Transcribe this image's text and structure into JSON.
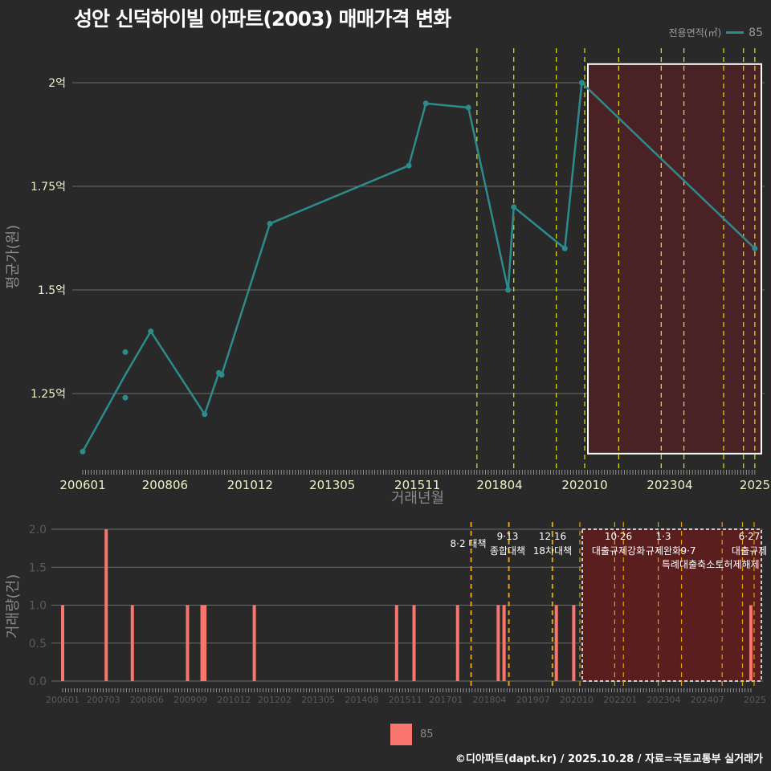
{
  "title": "성안 신덕하이빌 아파트(2003) 매매가격 변화",
  "legend_top": {
    "title": "전용면적(㎡)",
    "series": "85",
    "color": "#2e8b8b"
  },
  "legend_bottom": {
    "series": "85",
    "color": "#f8766d"
  },
  "footer": "©디아파트(dapt.kr) / 2025.10.28 / 자료=국토교통부 실거래가",
  "colors": {
    "background": "#2a292a",
    "line": "#2e8b8b",
    "bar": "#f8766d",
    "policy_line": "#e6e600",
    "policy_line_lower": "#e6a000",
    "highlight_fill": "#5a1e1e",
    "grid": "#6a6a6a"
  },
  "chart_data": [
    {
      "type": "line",
      "title": "성안 신덕하이빌 아파트(2003) 매매가격 변화",
      "xlabel": "거래년월",
      "ylabel": "평균가(원)",
      "x_tick_labels": [
        "200601",
        "200806",
        "201012",
        "201305",
        "201511",
        "201804",
        "202010",
        "202304",
        "2025"
      ],
      "y_tick_labels": [
        "1.25억",
        "1.5억",
        "1.75억",
        "2억"
      ],
      "ylim": [
        1.1,
        2.05
      ],
      "series": [
        {
          "name": "85",
          "points": [
            {
              "x": "200601",
              "y": 1.11
            },
            {
              "x": "200704",
              "y": 1.35
            },
            {
              "x": "200704",
              "y": 1.24
            },
            {
              "x": "200704",
              "y": 1.295
            },
            {
              "x": "200801",
              "y": 1.4
            },
            {
              "x": "200908",
              "y": 1.2
            },
            {
              "x": "201001",
              "y": 1.3
            },
            {
              "x": "201002",
              "y": 1.295
            },
            {
              "x": "201107",
              "y": 1.66
            },
            {
              "x": "201508",
              "y": 1.8
            },
            {
              "x": "201602",
              "y": 1.95
            },
            {
              "x": "201705",
              "y": 1.94
            },
            {
              "x": "201807",
              "y": 1.5
            },
            {
              "x": "201809",
              "y": 1.7
            },
            {
              "x": "202003",
              "y": 1.6
            },
            {
              "x": "202009",
              "y": 2.0
            },
            {
              "x": "202510",
              "y": 1.6
            }
          ]
        }
      ],
      "policy_lines_x": [
        "201708",
        "201809",
        "201912",
        "202010",
        "202110",
        "202301",
        "202309",
        "202411",
        "202506",
        "202510"
      ],
      "highlight_box": {
        "x_start": "202010",
        "x_end": "202510",
        "y_start": 1.105,
        "y_end": 2.045
      }
    },
    {
      "type": "bar",
      "xlabel": "",
      "ylabel": "거래량(건)",
      "x_tick_labels": [
        "200601",
        "200703",
        "200806",
        "200909",
        "201012",
        "201202",
        "201305",
        "201408",
        "201511",
        "201701",
        "201804",
        "201907",
        "202010",
        "202201",
        "202304",
        "202407",
        "2025"
      ],
      "y_tick_labels": [
        "0.0",
        "0.5",
        "1.0",
        "1.5",
        "2.0"
      ],
      "ylim": [
        0,
        2
      ],
      "series": [
        {
          "name": "85",
          "bars": [
            {
              "x": "200601",
              "y": 1
            },
            {
              "x": "200704",
              "y": 2
            },
            {
              "x": "200801",
              "y": 1
            },
            {
              "x": "200908",
              "y": 1
            },
            {
              "x": "201001",
              "y": 1
            },
            {
              "x": "201002",
              "y": 1
            },
            {
              "x": "201107",
              "y": 1
            },
            {
              "x": "201508",
              "y": 1
            },
            {
              "x": "201602",
              "y": 1
            },
            {
              "x": "201705",
              "y": 1
            },
            {
              "x": "201807",
              "y": 1
            },
            {
              "x": "201809",
              "y": 1
            },
            {
              "x": "202003",
              "y": 1
            },
            {
              "x": "202009",
              "y": 1
            },
            {
              "x": "202510",
              "y": 1
            }
          ]
        }
      ],
      "annotations": [
        {
          "date": "8·2",
          "label": "대책"
        },
        {
          "date": "9·13",
          "label": "종합대책"
        },
        {
          "date": "12·16",
          "label": "18차대책"
        },
        {
          "date": "10·26",
          "label": "대출규제강화"
        },
        {
          "date": "1·3",
          "label": "규제완화"
        },
        {
          "date": "9·7",
          "label": "특례대출축소"
        },
        {
          "date": "",
          "label": "토허제해제"
        },
        {
          "date": "6·27",
          "label": "대출규제"
        },
        {
          "date": "10",
          "label": ""
        }
      ]
    }
  ]
}
